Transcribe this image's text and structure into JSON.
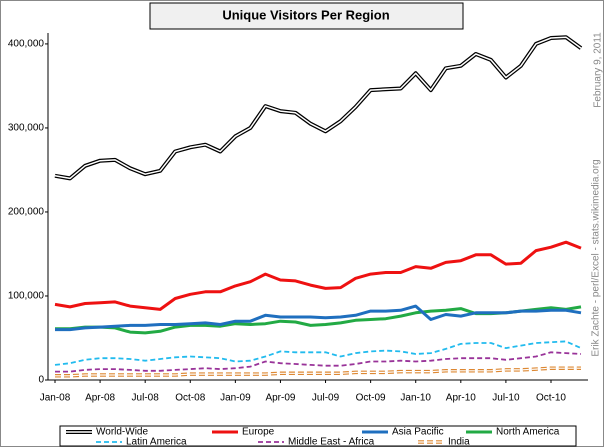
{
  "chart_data": {
    "type": "line",
    "title": "Unique Visitors Per Region",
    "side_text": [
      "February 9, 2011",
      "Erik Zachte - perl/Excel - stats.wikimedia.org"
    ],
    "categories": [
      "Jan-08",
      null,
      null,
      "Apr-08",
      null,
      null,
      "Jul-08",
      null,
      null,
      "Oct-08",
      null,
      null,
      "Jan-09",
      null,
      null,
      "Apr-09",
      null,
      null,
      "Jul-09",
      null,
      null,
      "Oct-09",
      null,
      null,
      "Jan-10",
      null,
      null,
      "Apr-10",
      null,
      null,
      "Jul-10",
      null,
      null,
      "Oct-10",
      null,
      null
    ],
    "ylim": [
      0,
      413000
    ],
    "yticks": [
      0,
      {
        "value": 100000,
        "label": "100,000"
      },
      {
        "value": 200000,
        "label": "200,000"
      },
      {
        "value": 300000,
        "label": "300,000"
      },
      {
        "value": 400000,
        "label": "400,000"
      }
    ],
    "legend": "bottom",
    "series": [
      {
        "name": "World-Wide",
        "color": "#000000",
        "style": "double",
        "values": [
          243000,
          240000,
          255000,
          261000,
          262000,
          252000,
          245000,
          249000,
          272000,
          277000,
          280000,
          272000,
          290000,
          300000,
          326000,
          320000,
          318000,
          305000,
          296000,
          308000,
          325000,
          345000,
          346000,
          347000,
          365000,
          345000,
          371000,
          374000,
          388000,
          381000,
          360000,
          374000,
          400000,
          407000,
          408000,
          395000
        ]
      },
      {
        "name": "Europe",
        "color": "#ee1111",
        "style": "solid",
        "values": [
          90000,
          87000,
          91000,
          92000,
          93000,
          88000,
          86000,
          84000,
          97000,
          102000,
          105000,
          105000,
          112000,
          117000,
          126000,
          119000,
          118000,
          113000,
          109000,
          110000,
          121000,
          126000,
          128000,
          128000,
          135000,
          133000,
          140000,
          142000,
          149000,
          149000,
          138000,
          139000,
          154000,
          158000,
          164000,
          157000
        ]
      },
      {
        "name": "Asia Pacific",
        "color": "#1f6fbf",
        "style": "solid",
        "values": [
          60000,
          60000,
          62000,
          63000,
          64000,
          65000,
          65000,
          66000,
          66000,
          67000,
          68000,
          66000,
          70000,
          70000,
          77000,
          75000,
          75000,
          75000,
          74000,
          75000,
          77000,
          82000,
          82000,
          83000,
          88000,
          72000,
          78000,
          76000,
          80000,
          80000,
          80000,
          82000,
          82000,
          83000,
          83000,
          80000
        ]
      },
      {
        "name": "North America",
        "color": "#22aa44",
        "style": "solid",
        "values": [
          61000,
          61000,
          63000,
          63000,
          62000,
          57000,
          56000,
          58000,
          63000,
          65000,
          65000,
          64000,
          67000,
          66000,
          67000,
          70000,
          69000,
          65000,
          66000,
          68000,
          71000,
          72000,
          73000,
          76000,
          80000,
          82000,
          83000,
          85000,
          79000,
          79000,
          80000,
          82000,
          84000,
          86000,
          84000,
          87000
        ]
      },
      {
        "name": "Latin America",
        "color": "#22bbee",
        "style": "dashed",
        "values": [
          18000,
          20000,
          24000,
          26000,
          26000,
          25000,
          23000,
          25000,
          27000,
          28000,
          27000,
          26000,
          22000,
          23000,
          28000,
          34000,
          33000,
          33000,
          33000,
          28000,
          32000,
          34000,
          35000,
          34000,
          31000,
          32000,
          37000,
          43000,
          44000,
          44000,
          38000,
          41000,
          44000,
          45000,
          46000,
          38000
        ]
      },
      {
        "name": "Middle East - Africa",
        "color": "#993399",
        "style": "dashed",
        "values": [
          10000,
          10000,
          12000,
          13000,
          13000,
          12000,
          11000,
          11000,
          12000,
          13000,
          14000,
          13000,
          14000,
          16000,
          22000,
          20000,
          19000,
          18000,
          17000,
          17000,
          19000,
          22000,
          22000,
          23000,
          22000,
          23000,
          25000,
          26000,
          26000,
          26000,
          24000,
          26000,
          28000,
          33000,
          32000,
          31000
        ]
      },
      {
        "name": "India",
        "color": "#dd8833",
        "style": "dashed-double",
        "values": [
          5000,
          5000,
          6000,
          6000,
          6000,
          6000,
          6000,
          6000,
          6000,
          7000,
          7000,
          7000,
          7000,
          7000,
          7000,
          8000,
          8000,
          8000,
          8000,
          8000,
          9000,
          9000,
          9000,
          10000,
          10000,
          10000,
          11000,
          11000,
          11000,
          11000,
          12000,
          12000,
          13000,
          14000,
          14000,
          14000
        ]
      }
    ]
  }
}
